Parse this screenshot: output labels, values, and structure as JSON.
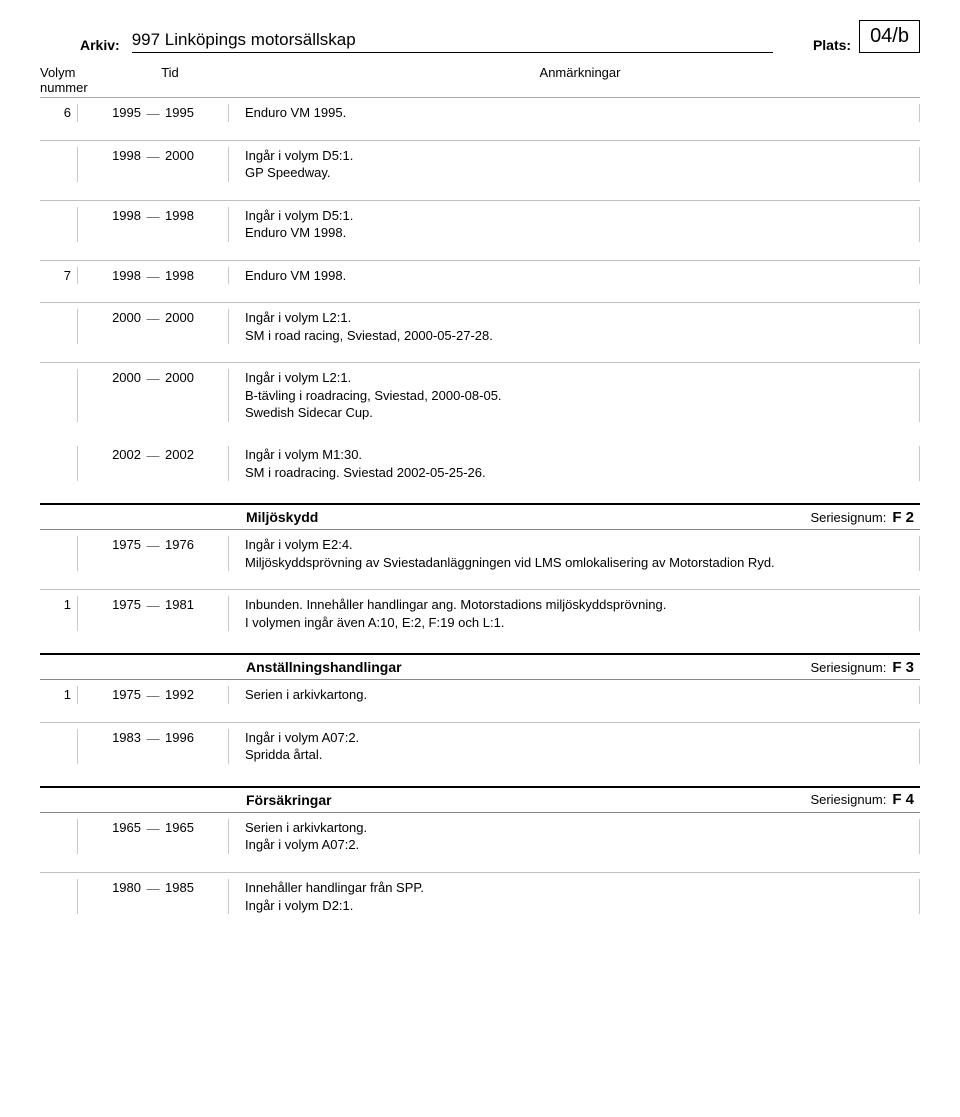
{
  "header": {
    "arkiv_label": "Arkiv:",
    "arkiv_title": "997 Linköpings motorsällskap",
    "plats_label": "Plats:",
    "plats_value": "04/b"
  },
  "cols": {
    "volnum_l1": "Volym",
    "volnum_l2": "nummer",
    "tid": "Tid",
    "anm": "Anmärkningar"
  },
  "serie_label": "Seriesignum:",
  "sections": [
    {
      "title": null,
      "serie": null,
      "groups": [
        {
          "rows": [
            {
              "vol": "6",
              "y1": "1995",
              "y2": "1995",
              "lines": [
                "Enduro VM 1995."
              ]
            }
          ]
        },
        {
          "rows": [
            {
              "vol": "",
              "y1": "1998",
              "y2": "2000",
              "lines": [
                "Ingår i volym D5:1.",
                "GP Speedway."
              ]
            }
          ]
        },
        {
          "rows": [
            {
              "vol": "",
              "y1": "1998",
              "y2": "1998",
              "lines": [
                "Ingår i volym D5:1.",
                "Enduro VM 1998."
              ]
            }
          ]
        },
        {
          "rows": [
            {
              "vol": "7",
              "y1": "1998",
              "y2": "1998",
              "lines": [
                "Enduro VM 1998."
              ]
            }
          ]
        },
        {
          "rows": [
            {
              "vol": "",
              "y1": "2000",
              "y2": "2000",
              "lines": [
                "Ingår i volym L2:1.",
                "SM i road racing, Sviestad, 2000-05-27-28."
              ]
            }
          ]
        },
        {
          "rows": [
            {
              "vol": "",
              "y1": "2000",
              "y2": "2000",
              "lines": [
                "Ingår i volym L2:1.",
                "B-tävling i roadracing, Sviestad, 2000-08-05.",
                "Swedish Sidecar Cup."
              ]
            },
            {
              "vol": "",
              "y1": "2002",
              "y2": "2002",
              "lines": [
                "Ingår i volym M1:30.",
                "SM i roadracing. Sviestad 2002-05-25-26."
              ]
            }
          ]
        }
      ]
    },
    {
      "title": "Miljöskydd",
      "serie": "F 2",
      "groups": [
        {
          "rows": [
            {
              "vol": "",
              "y1": "1975",
              "y2": "1976",
              "lines": [
                "Ingår i volym E2:4.",
                "Miljöskyddsprövning av Sviestadanläggningen vid LMS omlokalisering av Motorstadion Ryd."
              ]
            }
          ]
        },
        {
          "rows": [
            {
              "vol": "1",
              "y1": "1975",
              "y2": "1981",
              "lines": [
                "Inbunden. Innehåller handlingar ang. Motorstadions miljöskyddsprövning.",
                "I volymen ingår även A:10, E:2, F:19 och L:1."
              ]
            }
          ]
        }
      ]
    },
    {
      "title": "Anställningshandlingar",
      "serie": "F 3",
      "groups": [
        {
          "rows": [
            {
              "vol": "1",
              "y1": "1975",
              "y2": "1992",
              "lines": [
                "Serien i arkivkartong."
              ]
            }
          ]
        },
        {
          "rows": [
            {
              "vol": "",
              "y1": "1983",
              "y2": "1996",
              "lines": [
                "Ingår i volym A07:2.",
                "Spridda årtal."
              ]
            }
          ]
        }
      ]
    },
    {
      "title": "Försäkringar",
      "serie": "F 4",
      "groups": [
        {
          "rows": [
            {
              "vol": "",
              "y1": "1965",
              "y2": "1965",
              "lines": [
                "Serien i arkivkartong.",
                "Ingår i volym A07:2."
              ]
            }
          ]
        },
        {
          "rows": [
            {
              "vol": "",
              "y1": "1980",
              "y2": "1985",
              "lines": [
                "Innehåller handlingar från SPP.",
                "Ingår i volym D2:1."
              ]
            }
          ]
        }
      ]
    }
  ]
}
